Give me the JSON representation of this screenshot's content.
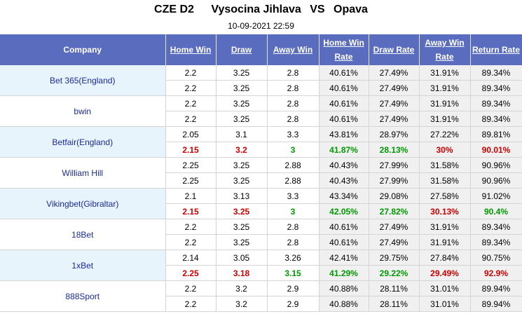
{
  "header": {
    "league": "CZE D2",
    "home_team": "Vysocina Jihlava",
    "vs": "VS",
    "away_team": "Opava",
    "datetime": "10-09-2021 22:59"
  },
  "columns": {
    "company": "Company",
    "home_win": "Home Win",
    "draw": "Draw",
    "away_win": "Away Win",
    "home_win_rate": [
      "Home Win",
      "Rate"
    ],
    "draw_rate": "Draw Rate",
    "away_win_rate": [
      "Away Win",
      "Rate"
    ],
    "return_rate": "Return Rate"
  },
  "colors": {
    "header_bg": "#5a6cbe",
    "company_text": "#1a2a99",
    "up": "#cc0000",
    "down": "#009900"
  },
  "companies": [
    {
      "name": "Bet 365(England)",
      "band": "blue",
      "rows": [
        {
          "home": "2.2",
          "draw": "3.25",
          "away": "2.8",
          "home_rate": "40.61%",
          "draw_rate": "27.49%",
          "away_rate": "31.91%",
          "return_rate": "89.34%"
        },
        {
          "home": "2.2",
          "draw": "3.25",
          "away": "2.8",
          "home_rate": "40.61%",
          "draw_rate": "27.49%",
          "away_rate": "31.91%",
          "return_rate": "89.34%"
        }
      ]
    },
    {
      "name": "bwin",
      "band": "white",
      "rows": [
        {
          "home": "2.2",
          "draw": "3.25",
          "away": "2.8",
          "home_rate": "40.61%",
          "draw_rate": "27.49%",
          "away_rate": "31.91%",
          "return_rate": "89.34%"
        },
        {
          "home": "2.2",
          "draw": "3.25",
          "away": "2.8",
          "home_rate": "40.61%",
          "draw_rate": "27.49%",
          "away_rate": "31.91%",
          "return_rate": "89.34%"
        }
      ]
    },
    {
      "name": "Betfair(England)",
      "band": "blue",
      "rows": [
        {
          "home": "2.05",
          "draw": "3.1",
          "away": "3.3",
          "home_rate": "43.81%",
          "draw_rate": "28.97%",
          "away_rate": "27.22%",
          "return_rate": "89.81%"
        },
        {
          "changed": true,
          "home": "2.15",
          "draw": "3.2",
          "away": "3",
          "home_rate": "41.87%",
          "draw_rate": "28.13%",
          "away_rate": "30%",
          "return_rate": "90.01%",
          "colors": {
            "home": "up",
            "draw": "up",
            "away": "down",
            "home_rate": "down",
            "draw_rate": "down",
            "away_rate": "up",
            "return_rate": "up"
          }
        }
      ]
    },
    {
      "name": "William Hill",
      "band": "white",
      "rows": [
        {
          "home": "2.25",
          "draw": "3.25",
          "away": "2.88",
          "home_rate": "40.43%",
          "draw_rate": "27.99%",
          "away_rate": "31.58%",
          "return_rate": "90.96%"
        },
        {
          "home": "2.25",
          "draw": "3.25",
          "away": "2.88",
          "home_rate": "40.43%",
          "draw_rate": "27.99%",
          "away_rate": "31.58%",
          "return_rate": "90.96%"
        }
      ]
    },
    {
      "name": "Vikingbet(Gibraltar)",
      "band": "blue",
      "rows": [
        {
          "home": "2.1",
          "draw": "3.13",
          "away": "3.3",
          "home_rate": "43.34%",
          "draw_rate": "29.08%",
          "away_rate": "27.58%",
          "return_rate": "91.02%"
        },
        {
          "changed": true,
          "home": "2.15",
          "draw": "3.25",
          "away": "3",
          "home_rate": "42.05%",
          "draw_rate": "27.82%",
          "away_rate": "30.13%",
          "return_rate": "90.4%",
          "colors": {
            "home": "up",
            "draw": "up",
            "away": "down",
            "home_rate": "down",
            "draw_rate": "down",
            "away_rate": "up",
            "return_rate": "down"
          }
        }
      ]
    },
    {
      "name": "18Bet",
      "band": "white",
      "rows": [
        {
          "home": "2.2",
          "draw": "3.25",
          "away": "2.8",
          "home_rate": "40.61%",
          "draw_rate": "27.49%",
          "away_rate": "31.91%",
          "return_rate": "89.34%"
        },
        {
          "home": "2.2",
          "draw": "3.25",
          "away": "2.8",
          "home_rate": "40.61%",
          "draw_rate": "27.49%",
          "away_rate": "31.91%",
          "return_rate": "89.34%"
        }
      ]
    },
    {
      "name": "1xBet",
      "band": "blue",
      "rows": [
        {
          "home": "2.14",
          "draw": "3.05",
          "away": "3.26",
          "home_rate": "42.41%",
          "draw_rate": "29.75%",
          "away_rate": "27.84%",
          "return_rate": "90.75%"
        },
        {
          "changed": true,
          "home": "2.25",
          "draw": "3.18",
          "away": "3.15",
          "home_rate": "41.29%",
          "draw_rate": "29.22%",
          "away_rate": "29.49%",
          "return_rate": "92.9%",
          "colors": {
            "home": "up",
            "draw": "up",
            "away": "down",
            "home_rate": "down",
            "draw_rate": "down",
            "away_rate": "up",
            "return_rate": "up"
          }
        }
      ]
    },
    {
      "name": "888Sport",
      "band": "white",
      "rows": [
        {
          "home": "2.2",
          "draw": "3.2",
          "away": "2.9",
          "home_rate": "40.88%",
          "draw_rate": "28.11%",
          "away_rate": "31.01%",
          "return_rate": "89.94%"
        },
        {
          "home": "2.2",
          "draw": "3.2",
          "away": "2.9",
          "home_rate": "40.88%",
          "draw_rate": "28.11%",
          "away_rate": "31.01%",
          "return_rate": "89.94%"
        }
      ]
    }
  ]
}
